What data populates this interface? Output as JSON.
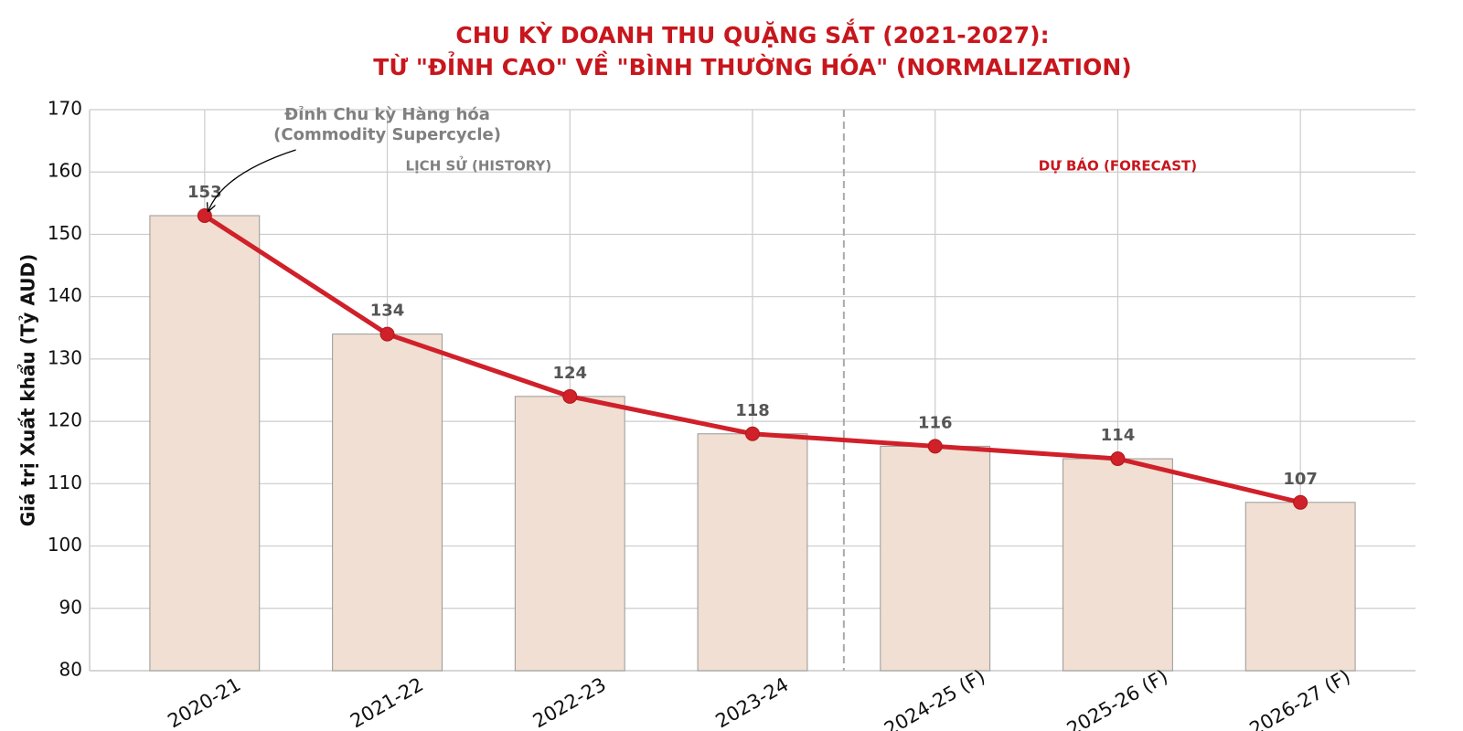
{
  "chart_data": {
    "type": "bar-line",
    "title": [
      "CHU KỲ DOANH THU QUẶNG SẮT (2021-2027):",
      "TỪ \"ĐỈNH CAO\" VỀ \"BÌNH THƯỜNG HÓA\" (NORMALIZATION)"
    ],
    "y_label": "Giá trị Xuất khẩu (Tỷ AUD)",
    "categories": [
      "2020-21",
      "2021-22",
      "2022-23",
      "2023-24",
      "2024-25 (F)",
      "2025-26 (F)",
      "2026-27 (F)"
    ],
    "values": [
      153,
      134,
      124,
      118,
      116,
      114,
      107
    ],
    "bar_color": "#f0dfd2",
    "line_color": "#d0202a",
    "ylim": [
      80,
      170
    ],
    "yticks": [
      80,
      90,
      100,
      110,
      120,
      130,
      140,
      150,
      160,
      170
    ],
    "grid": true,
    "region_labels": [
      "LỊCH SỬ (HISTORY)",
      "DỰ BÁO (FORECAST)"
    ],
    "annotation": [
      "Đỉnh Chu kỳ Hàng hóa",
      "(Commodity Supercycle)"
    ]
  }
}
